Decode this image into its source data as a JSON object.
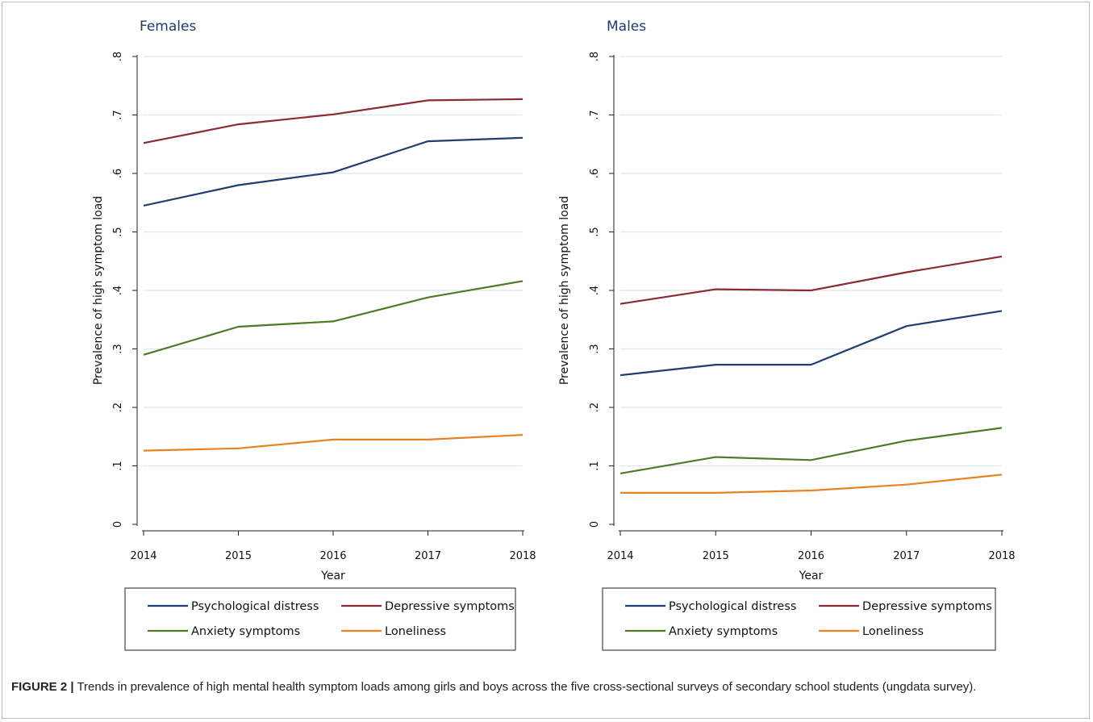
{
  "caption": {
    "label": "FIGURE 2 |",
    "text": " Trends in prevalence of high mental health symptom loads among girls and boys across the five cross-sectional surveys of secondary school students (ungdata survey)."
  },
  "colors": {
    "psychological_distress": "#1f3f6e",
    "depressive_symptoms": "#8b2a35",
    "anxiety_symptoms": "#4f7a28",
    "loneliness": "#e8821e",
    "gridline": "#dde8e8"
  },
  "chart_data": [
    {
      "type": "line",
      "title": "Females",
      "xlabel": "Year",
      "ylabel": "Prevalence of high symptom load",
      "x": [
        2014,
        2015,
        2016,
        2017,
        2018
      ],
      "ylim": [
        0,
        0.8
      ],
      "yticks": [
        0,
        0.1,
        0.2,
        0.3,
        0.4,
        0.5,
        0.6,
        0.7,
        0.8
      ],
      "ytick_labels": [
        "0",
        ".1",
        ".2",
        ".3",
        ".4",
        ".5",
        ".6",
        ".7",
        ".8"
      ],
      "grid": true,
      "legend_position": "bottom",
      "series": [
        {
          "name": "Psychological distress",
          "color": "#1f3f6e",
          "values": [
            0.545,
            0.58,
            0.602,
            0.655,
            0.661
          ]
        },
        {
          "name": "Depressive symptoms",
          "color": "#8b2a35",
          "values": [
            0.652,
            0.684,
            0.701,
            0.725,
            0.727
          ]
        },
        {
          "name": "Anxiety symptoms",
          "color": "#4f7a28",
          "values": [
            0.29,
            0.338,
            0.347,
            0.388,
            0.416
          ]
        },
        {
          "name": "Loneliness",
          "color": "#e8821e",
          "values": [
            0.126,
            0.13,
            0.145,
            0.145,
            0.153
          ]
        }
      ]
    },
    {
      "type": "line",
      "title": "Males",
      "xlabel": "Year",
      "ylabel": "Prevalence of high symptom load",
      "x": [
        2014,
        2015,
        2016,
        2017,
        2018
      ],
      "ylim": [
        0,
        0.8
      ],
      "yticks": [
        0,
        0.1,
        0.2,
        0.3,
        0.4,
        0.5,
        0.6,
        0.7,
        0.8
      ],
      "ytick_labels": [
        "0",
        ".1",
        ".2",
        ".3",
        ".4",
        ".5",
        ".6",
        ".7",
        ".8"
      ],
      "grid": true,
      "legend_position": "bottom",
      "series": [
        {
          "name": "Psychological distress",
          "color": "#1f3f6e",
          "values": [
            0.255,
            0.273,
            0.273,
            0.339,
            0.365
          ]
        },
        {
          "name": "Depressive symptoms",
          "color": "#8b2a35",
          "values": [
            0.377,
            0.402,
            0.4,
            0.431,
            0.458
          ]
        },
        {
          "name": "Anxiety symptoms",
          "color": "#4f7a28",
          "values": [
            0.087,
            0.115,
            0.11,
            0.143,
            0.165
          ]
        },
        {
          "name": "Loneliness",
          "color": "#e8821e",
          "values": [
            0.054,
            0.054,
            0.058,
            0.068,
            0.085
          ]
        }
      ]
    }
  ]
}
